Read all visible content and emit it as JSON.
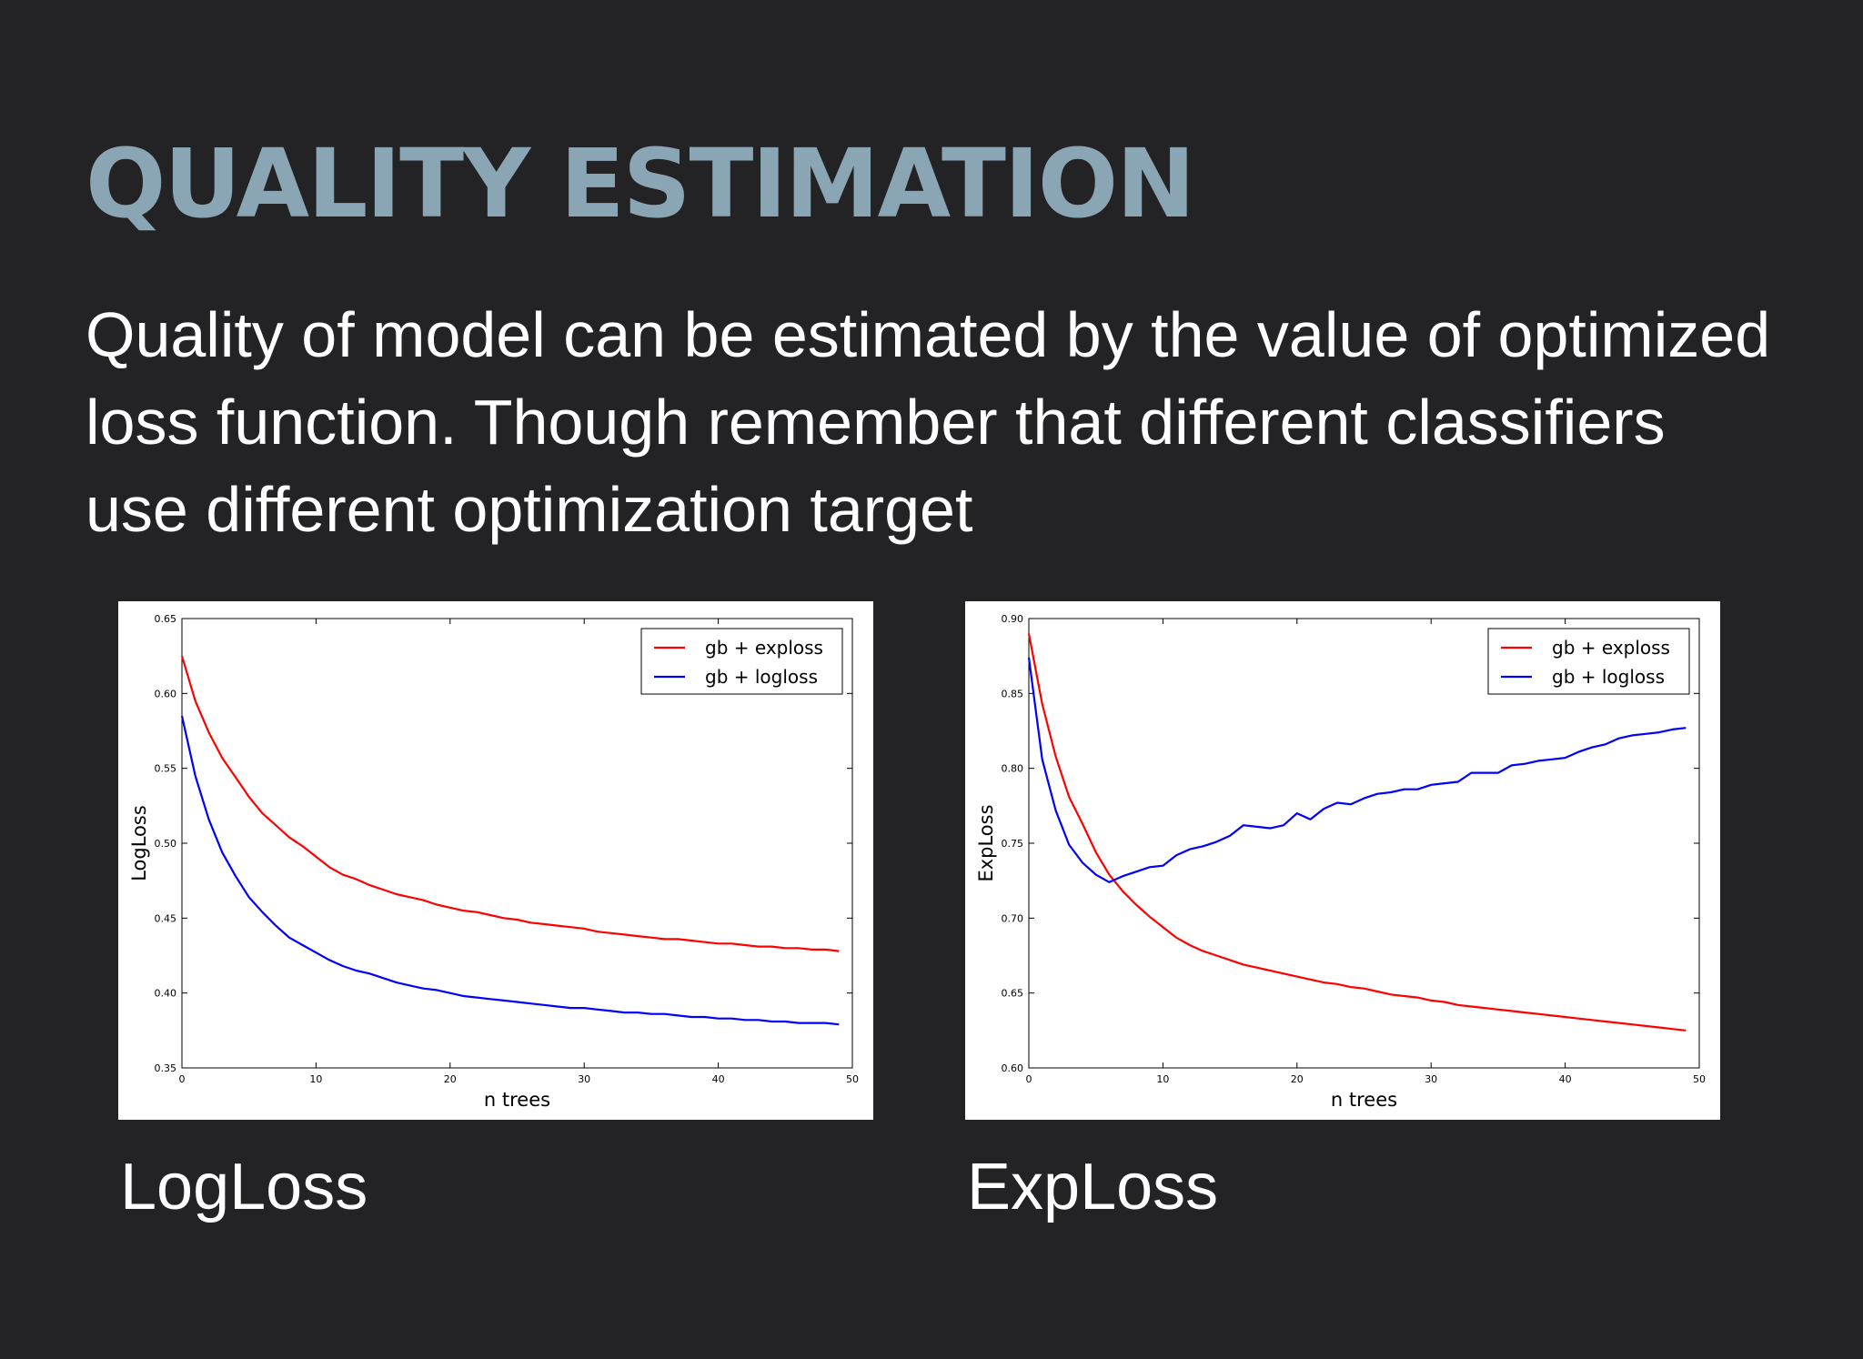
{
  "slide": {
    "title": "QUALITY ESTIMATION",
    "body_lines": [
      "Quality of model can be estimated by the value of optimized",
      "loss function. Though remember that different classifiers",
      "use different optimization target"
    ],
    "captions": [
      "LogLoss",
      "ExpLoss"
    ]
  },
  "colors": {
    "background": "#232325",
    "title": "#8aa5b3",
    "text": "#ffffff",
    "series_exploss": "#ff0000",
    "series_logloss": "#0000ff"
  },
  "chart_data": [
    {
      "type": "line",
      "title": "",
      "xlabel": "n trees",
      "ylabel": "LogLoss",
      "xlim": [
        0,
        50
      ],
      "ylim": [
        0.35,
        0.65
      ],
      "xticks": [
        0,
        10,
        20,
        30,
        40,
        50
      ],
      "xtick_labels": [
        "0",
        "10",
        "20",
        "30",
        "40",
        "50"
      ],
      "yticks": [
        0.35,
        0.4,
        0.45,
        0.5,
        0.55,
        0.6,
        0.65
      ],
      "ytick_labels": [
        "0.35",
        "0.40",
        "0.45",
        "0.50",
        "0.55",
        "0.60",
        "0.65"
      ],
      "legend_position": "top-right",
      "grid": false,
      "x": [
        0,
        1,
        2,
        3,
        4,
        5,
        6,
        7,
        8,
        9,
        10,
        11,
        12,
        13,
        14,
        15,
        16,
        17,
        18,
        19,
        20,
        21,
        22,
        23,
        24,
        25,
        26,
        27,
        28,
        29,
        30,
        31,
        32,
        33,
        34,
        35,
        36,
        37,
        38,
        39,
        40,
        41,
        42,
        43,
        44,
        45,
        46,
        47,
        48,
        49
      ],
      "series": [
        {
          "name": "gb + exploss",
          "color": "#ff0000",
          "values": [
            0.625,
            0.595,
            0.574,
            0.557,
            0.544,
            0.531,
            0.52,
            0.512,
            0.504,
            0.498,
            0.491,
            0.484,
            0.479,
            0.476,
            0.472,
            0.469,
            0.466,
            0.464,
            0.462,
            0.459,
            0.457,
            0.455,
            0.454,
            0.452,
            0.45,
            0.449,
            0.447,
            0.446,
            0.445,
            0.444,
            0.443,
            0.441,
            0.44,
            0.439,
            0.438,
            0.437,
            0.436,
            0.436,
            0.435,
            0.434,
            0.433,
            0.433,
            0.432,
            0.431,
            0.431,
            0.43,
            0.43,
            0.429,
            0.429,
            0.428
          ]
        },
        {
          "name": "gb + logloss",
          "color": "#0000ff",
          "values": [
            0.585,
            0.545,
            0.516,
            0.494,
            0.478,
            0.464,
            0.454,
            0.445,
            0.437,
            0.432,
            0.427,
            0.422,
            0.418,
            0.415,
            0.413,
            0.41,
            0.407,
            0.405,
            0.403,
            0.402,
            0.4,
            0.398,
            0.397,
            0.396,
            0.395,
            0.394,
            0.393,
            0.392,
            0.391,
            0.39,
            0.39,
            0.389,
            0.388,
            0.387,
            0.387,
            0.386,
            0.386,
            0.385,
            0.384,
            0.384,
            0.383,
            0.383,
            0.382,
            0.382,
            0.381,
            0.381,
            0.38,
            0.38,
            0.38,
            0.379
          ]
        }
      ]
    },
    {
      "type": "line",
      "title": "",
      "xlabel": "n trees",
      "ylabel": "ExpLoss",
      "xlim": [
        0,
        50
      ],
      "ylim": [
        0.6,
        0.9
      ],
      "xticks": [
        0,
        10,
        20,
        30,
        40,
        50
      ],
      "xtick_labels": [
        "0",
        "10",
        "20",
        "30",
        "40",
        "50"
      ],
      "yticks": [
        0.6,
        0.65,
        0.7,
        0.75,
        0.8,
        0.85,
        0.9
      ],
      "ytick_labels": [
        "0.60",
        "0.65",
        "0.70",
        "0.75",
        "0.80",
        "0.85",
        "0.90"
      ],
      "legend_position": "top-right",
      "grid": false,
      "x": [
        0,
        1,
        2,
        3,
        4,
        5,
        6,
        7,
        8,
        9,
        10,
        11,
        12,
        13,
        14,
        15,
        16,
        17,
        18,
        19,
        20,
        21,
        22,
        23,
        24,
        25,
        26,
        27,
        28,
        29,
        30,
        31,
        32,
        33,
        34,
        35,
        36,
        37,
        38,
        39,
        40,
        41,
        42,
        43,
        44,
        45,
        46,
        47,
        48,
        49
      ],
      "series": [
        {
          "name": "gb + exploss",
          "color": "#ff0000",
          "values": [
            0.89,
            0.843,
            0.808,
            0.781,
            0.763,
            0.744,
            0.729,
            0.718,
            0.709,
            0.701,
            0.694,
            0.687,
            0.682,
            0.678,
            0.675,
            0.672,
            0.669,
            0.667,
            0.665,
            0.663,
            0.661,
            0.659,
            0.657,
            0.656,
            0.654,
            0.653,
            0.651,
            0.649,
            0.648,
            0.647,
            0.645,
            0.644,
            0.642,
            0.641,
            0.64,
            0.639,
            0.638,
            0.637,
            0.636,
            0.635,
            0.634,
            0.633,
            0.632,
            0.631,
            0.63,
            0.629,
            0.628,
            0.627,
            0.626,
            0.625
          ]
        },
        {
          "name": "gb + logloss",
          "color": "#0000ff",
          "values": [
            0.874,
            0.806,
            0.772,
            0.749,
            0.737,
            0.729,
            0.724,
            0.728,
            0.731,
            0.734,
            0.735,
            0.742,
            0.746,
            0.748,
            0.751,
            0.755,
            0.762,
            0.761,
            0.76,
            0.762,
            0.77,
            0.766,
            0.773,
            0.777,
            0.776,
            0.78,
            0.783,
            0.784,
            0.786,
            0.786,
            0.789,
            0.79,
            0.791,
            0.797,
            0.797,
            0.797,
            0.802,
            0.803,
            0.805,
            0.806,
            0.807,
            0.811,
            0.814,
            0.816,
            0.82,
            0.822,
            0.823,
            0.824,
            0.826,
            0.827
          ]
        }
      ]
    }
  ]
}
